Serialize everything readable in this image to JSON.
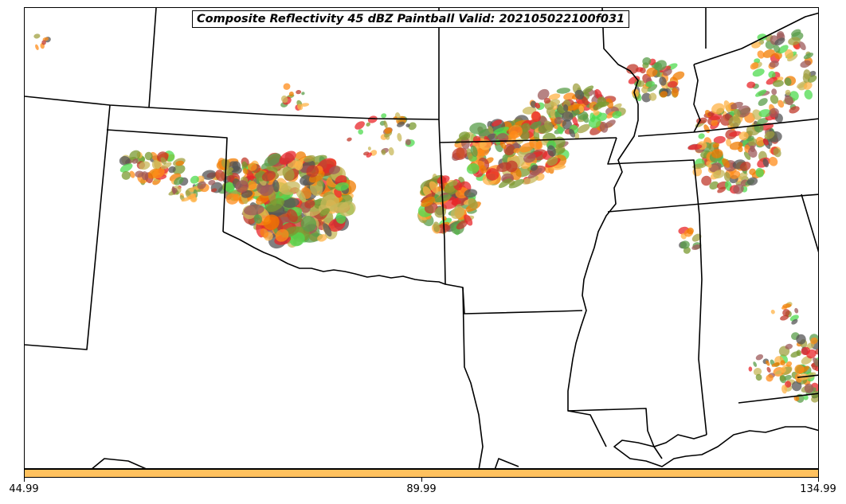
{
  "title": "Composite Reflectivity 45 dBZ Paintball Valid: 202105022100f031",
  "colorbar": {
    "color": "#FFC15E",
    "ticks": [
      "44.99",
      "89.99",
      "134.99"
    ]
  },
  "paint_colors": [
    "#e8262a",
    "#f07c00",
    "#5a9e4a",
    "#9e5a5a",
    "#a0a040",
    "#ffb347",
    "#4fdb4f",
    "#c8b85a",
    "#555555",
    "#c0392b",
    "#7a9a30",
    "#ff8c1a"
  ]
}
